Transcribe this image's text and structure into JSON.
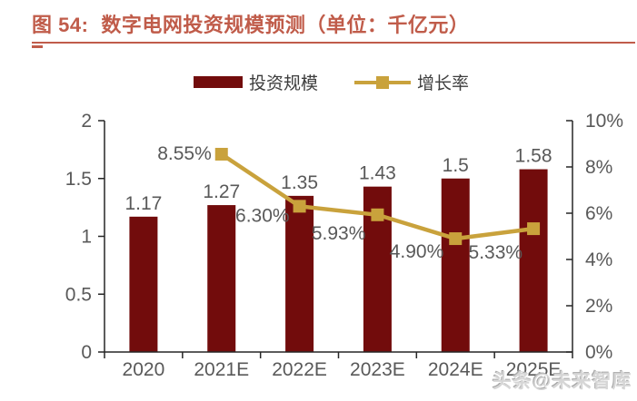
{
  "header": {
    "figure_label": "图 54:",
    "title": "数字电网投资规模预测（单位：千亿元）"
  },
  "legend": {
    "items": [
      {
        "label": "投资规模",
        "type": "bar"
      },
      {
        "label": "增长率",
        "type": "line"
      }
    ]
  },
  "chart_data": {
    "type": "combo",
    "categories": [
      "2020",
      "2021E",
      "2022E",
      "2023E",
      "2024E",
      "2025E"
    ],
    "series": [
      {
        "name": "投资规模",
        "type": "bar",
        "axis": "left",
        "values": [
          1.17,
          1.27,
          1.35,
          1.43,
          1.5,
          1.58
        ],
        "labels": [
          "1.17",
          "1.27",
          "1.35",
          "1.43",
          "1.5",
          "1.58"
        ]
      },
      {
        "name": "增长率",
        "type": "line",
        "axis": "right",
        "unit": "%",
        "values": [
          null,
          8.55,
          6.3,
          5.93,
          4.9,
          5.33
        ],
        "labels": [
          null,
          "8.55%",
          "6.30%",
          "5.93%",
          "4.90%",
          "5.33%"
        ]
      }
    ],
    "left_axis": {
      "min": 0,
      "max": 2,
      "ticks": [
        "0",
        "0.5",
        "1",
        "1.5",
        "2"
      ]
    },
    "right_axis": {
      "min": 0,
      "max": 10,
      "ticks": [
        "0%",
        "2%",
        "4%",
        "6%",
        "8%",
        "10%"
      ]
    },
    "grid": false,
    "legend_position": "top-center"
  },
  "watermark": {
    "text": "头条@未来智库"
  },
  "colors": {
    "title": "#C05C4A",
    "bar": "#720C0C",
    "line": "#C9A23C",
    "axis_text": "#595959",
    "data_label_text": "#595959",
    "axis_line": "#262626"
  }
}
